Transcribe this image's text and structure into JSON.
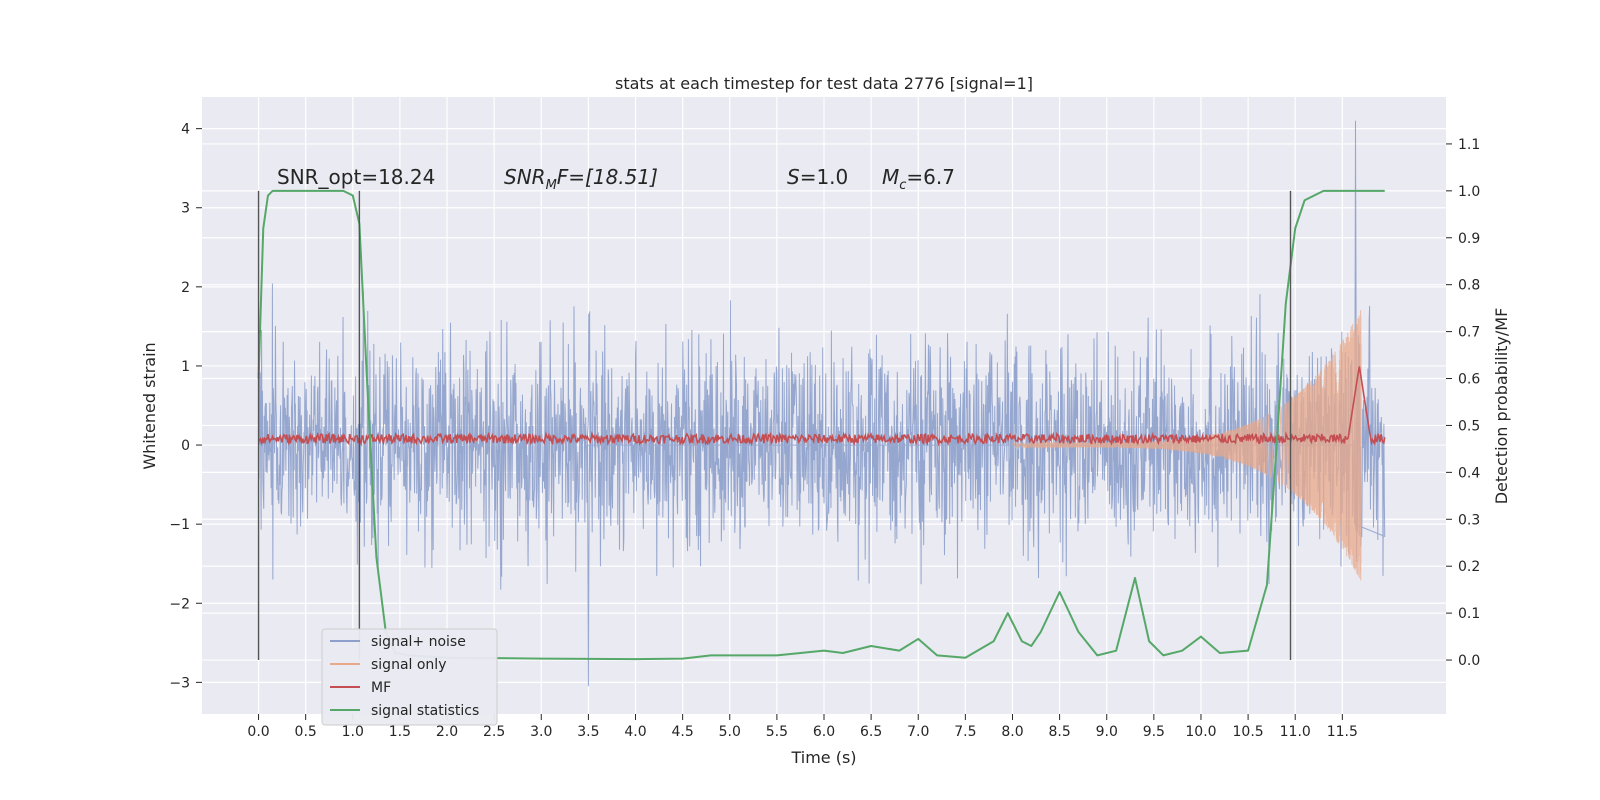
{
  "chart_data": {
    "type": "line",
    "title": "stats at each timestep for test data 2776 [signal=1]",
    "xlabel": "Time (s)",
    "ylabel": "Whitened strain",
    "y2label": "Detection probability/MF",
    "xlim": [
      -0.6,
      12.6
    ],
    "ylim": [
      -3.4,
      4.4
    ],
    "y2lim": [
      -0.115,
      1.2
    ],
    "xticks": [
      "0.0",
      "0.5",
      "1.0",
      "1.5",
      "2.0",
      "2.5",
      "3.0",
      "3.5",
      "4.0",
      "4.5",
      "5.0",
      "5.5",
      "6.0",
      "6.5",
      "7.0",
      "7.5",
      "8.0",
      "8.5",
      "9.0",
      "9.5",
      "10.0",
      "10.5",
      "11.0",
      "11.5"
    ],
    "yticks": [
      "4",
      "3",
      "2",
      "1",
      "0",
      "−1",
      "−2",
      "−3"
    ],
    "y2ticks": [
      "1.1",
      "1.0",
      "0.9",
      "0.8",
      "0.7",
      "0.6",
      "0.5",
      "0.4",
      "0.3",
      "0.2",
      "0.1",
      "0.0"
    ],
    "grid": true,
    "legend_position": "lower-left",
    "annotations": [
      {
        "text": "SNR_opt=18.24"
      },
      {
        "text": "SNR",
        "sub": "M",
        "tail": "F=[18.51]"
      },
      {
        "text": "S",
        "tail": "=1.0"
      },
      {
        "text": "M",
        "sub": "c",
        "tail": "=6.7"
      }
    ],
    "vlines_x": [
      0.0,
      1.07,
      10.95
    ],
    "series": [
      {
        "name": "signal+ noise",
        "color": "#8da0cb",
        "axis": "left",
        "envelope_peak": 4.1,
        "envelope_trough": -3.05
      },
      {
        "name": "signal only",
        "color": "#e8a88a",
        "axis": "left",
        "chirp_start": 8.0,
        "chirp_end": 11.7,
        "peak_amplitude": 1.7
      },
      {
        "name": "MF",
        "color": "#c44e52",
        "axis": "left",
        "typical_value": 0.08,
        "peak_value": 1.0,
        "peak_time": 11.68
      },
      {
        "name": "signal statistics",
        "color": "#55a868",
        "axis": "right",
        "x": [
          0.0,
          0.05,
          0.1,
          0.15,
          0.2,
          0.4,
          0.7,
          0.9,
          1.0,
          1.07,
          1.15,
          1.25,
          1.35,
          1.45,
          1.6,
          2.0,
          3.0,
          4.0,
          4.5,
          4.8,
          5.0,
          5.5,
          6.0,
          6.2,
          6.5,
          6.8,
          7.0,
          7.2,
          7.5,
          7.8,
          7.95,
          8.1,
          8.2,
          8.3,
          8.5,
          8.7,
          8.9,
          9.1,
          9.3,
          9.45,
          9.6,
          9.8,
          10.0,
          10.2,
          10.5,
          10.7,
          10.8,
          10.9,
          11.0,
          11.1,
          11.3,
          11.6,
          11.95
        ],
        "y": [
          0.6,
          0.92,
          0.99,
          1.0,
          1.0,
          1.0,
          1.0,
          1.0,
          0.99,
          0.93,
          0.6,
          0.22,
          0.06,
          0.015,
          0.01,
          0.005,
          0.003,
          0.002,
          0.003,
          0.01,
          0.01,
          0.01,
          0.02,
          0.015,
          0.03,
          0.02,
          0.045,
          0.01,
          0.005,
          0.04,
          0.1,
          0.04,
          0.03,
          0.06,
          0.145,
          0.06,
          0.01,
          0.02,
          0.175,
          0.04,
          0.01,
          0.02,
          0.05,
          0.015,
          0.02,
          0.16,
          0.45,
          0.76,
          0.92,
          0.98,
          1.0,
          1.0,
          1.0
        ]
      }
    ]
  }
}
